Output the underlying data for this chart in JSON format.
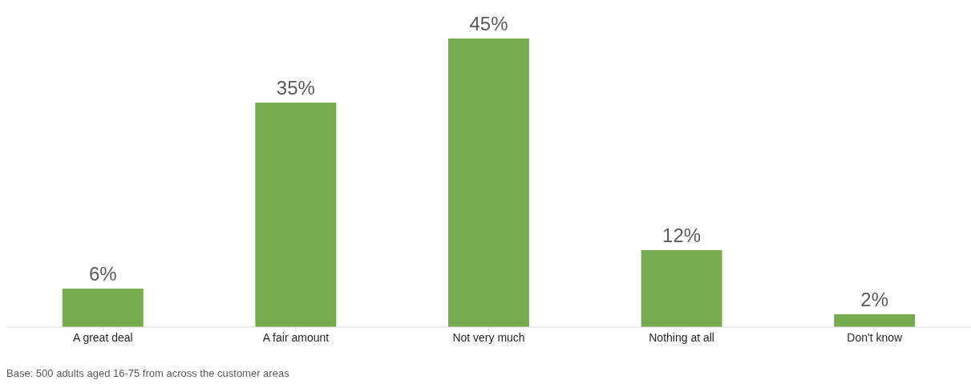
{
  "chart_data": {
    "type": "bar",
    "categories": [
      "A great deal",
      "A fair amount",
      "Not very much",
      "Nothing at all",
      "Don't know"
    ],
    "values": [
      6,
      35,
      45,
      12,
      2
    ],
    "value_labels": [
      "6%",
      "35%",
      "45%",
      "12%",
      "2%"
    ],
    "color": "#77ab4f",
    "annotations": [
      "Base: 500 adults aged 16-75  from across the customer areas"
    ]
  }
}
